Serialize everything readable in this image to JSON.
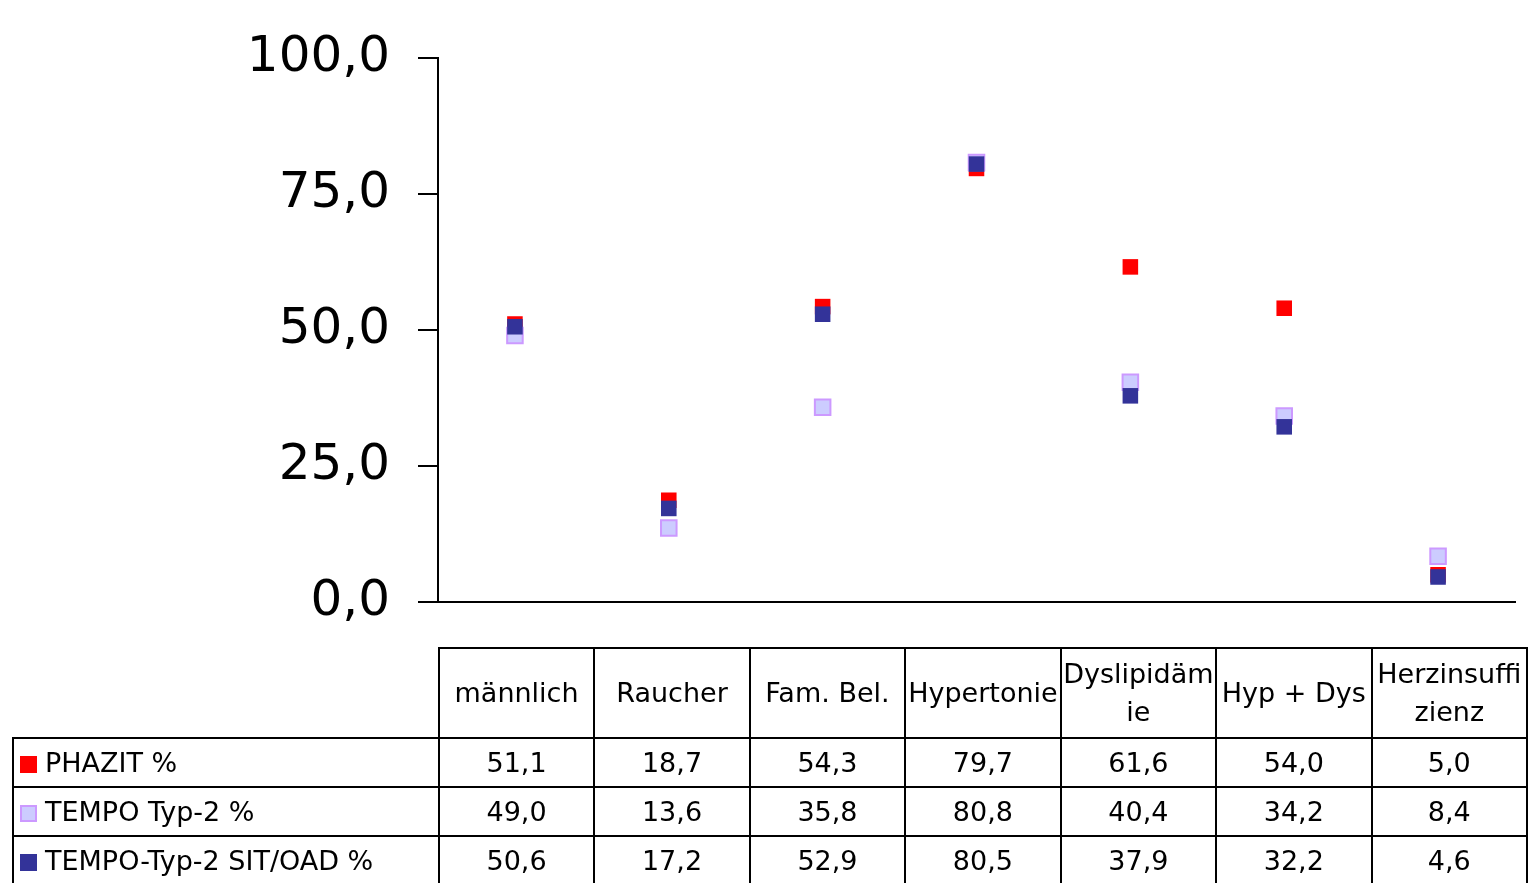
{
  "chart_data": {
    "type": "scatter",
    "categories": [
      "männlich",
      "Raucher",
      "Fam. Bel.",
      "Hypertonie",
      "Dyslipidämie",
      "Hyp + Dys",
      "Herzinsuffizienz"
    ],
    "series": [
      {
        "name": "PHAZIT %",
        "color": "#ff0000",
        "values": [
          51.1,
          18.7,
          54.3,
          79.7,
          61.6,
          54.0,
          5.0
        ],
        "value_labels": [
          "51,1",
          "18,7",
          "54,3",
          "79,7",
          "61,6",
          "54,0",
          "5,0"
        ]
      },
      {
        "name": "TEMPO Typ-2 %",
        "color": "#ccccff",
        "values": [
          49.0,
          13.6,
          35.8,
          80.8,
          40.4,
          34.2,
          8.4
        ],
        "value_labels": [
          "49,0",
          "13,6",
          "35,8",
          "80,8",
          "40,4",
          "34,2",
          "8,4"
        ]
      },
      {
        "name": "TEMPO-Typ-2 SIT/OAD %",
        "color": "#333399",
        "values": [
          50.6,
          17.2,
          52.9,
          80.5,
          37.9,
          32.2,
          4.6
        ],
        "value_labels": [
          "50,6",
          "17,2",
          "52,9",
          "80,5",
          "37,9",
          "32,2",
          "4,6"
        ]
      }
    ],
    "ylim": [
      0,
      100
    ],
    "yticks": [
      {
        "value": 0,
        "label": "0,0"
      },
      {
        "value": 25,
        "label": "25,0"
      },
      {
        "value": 50,
        "label": "50,0"
      },
      {
        "value": 75,
        "label": "75,0"
      },
      {
        "value": 100,
        "label": "100,0"
      }
    ],
    "marker": "square",
    "legend": "bottom"
  }
}
